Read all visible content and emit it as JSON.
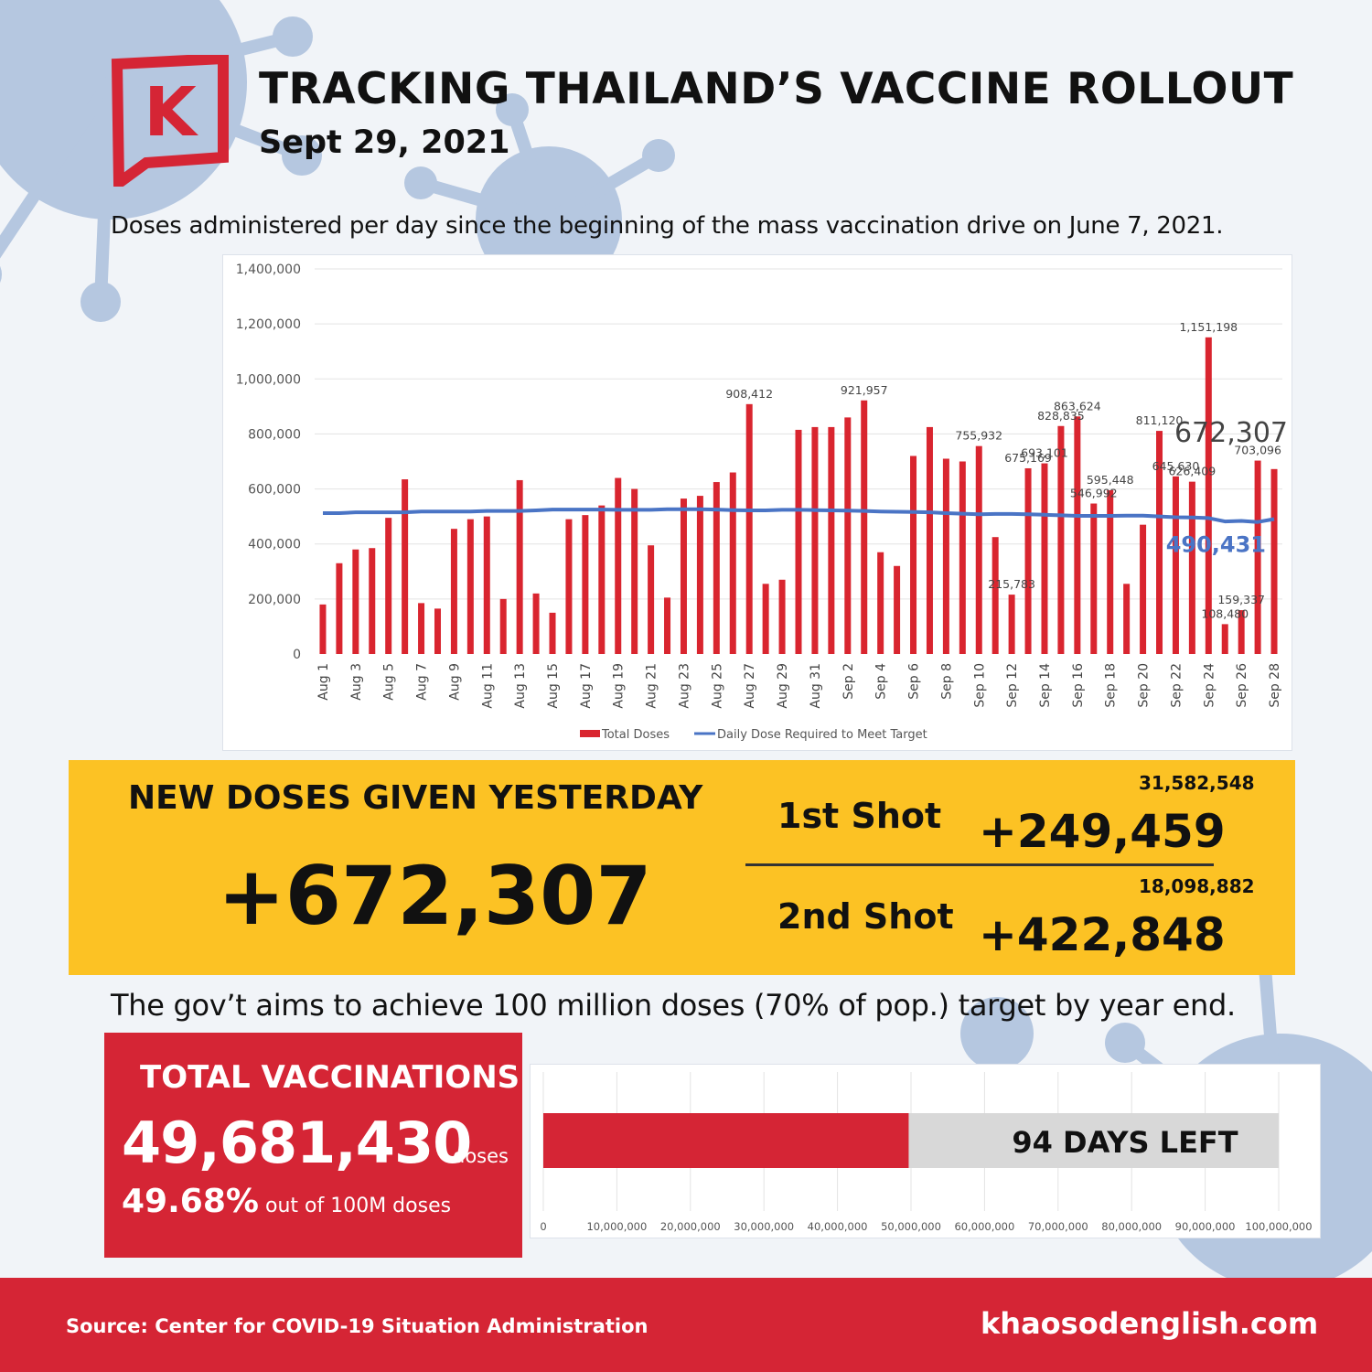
{
  "header": {
    "title": "TRACKING THAILAND’S VACCINE ROLLOUT",
    "date": "Sept 29, 2021",
    "logo_letter": "K"
  },
  "chart_subtitle": "Doses administered per day since the beginning of the mass vaccination drive on June 7, 2021.",
  "colors": {
    "red": "#d52535",
    "bar": "#d9252f",
    "line": "#4a74c5",
    "yellow": "#fcc224",
    "virus": "#b5c7e0"
  },
  "chart_data": {
    "type": "bar",
    "x": [
      "Aug 1",
      "Aug 2",
      "Aug 3",
      "Aug 4",
      "Aug 5",
      "Aug 6",
      "Aug 7",
      "Aug 8",
      "Aug 9",
      "Aug 10",
      "Aug 11",
      "Aug 12",
      "Aug 13",
      "Aug 14",
      "Aug 15",
      "Aug 16",
      "Aug 17",
      "Aug 18",
      "Aug 19",
      "Aug 20",
      "Aug 21",
      "Aug 22",
      "Aug 23",
      "Aug 24",
      "Aug 25",
      "Aug 26",
      "Aug 27",
      "Aug 28",
      "Aug 29",
      "Aug 30",
      "Aug 31",
      "Sep 1",
      "Sep 2",
      "Sep 3",
      "Sep 4",
      "Sep 5",
      "Sep 6",
      "Sep 7",
      "Sep 8",
      "Sep 9",
      "Sep 10",
      "Sep 11",
      "Sep 12",
      "Sep 13",
      "Sep 14",
      "Sep 15",
      "Sep 16",
      "Sep 17",
      "Sep 18",
      "Sep 19",
      "Sep 20",
      "Sep 21",
      "Sep 22",
      "Sep 23",
      "Sep 24",
      "Sep 25",
      "Sep 26",
      "Sep 27",
      "Sep 28"
    ],
    "tick_labels": [
      "Aug 1",
      "Aug 3",
      "Aug 5",
      "Aug 7",
      "Aug 9",
      "Aug 11",
      "Aug 13",
      "Aug 15",
      "Aug 17",
      "Aug 19",
      "Aug 21",
      "Aug 23",
      "Aug 25",
      "Aug 27",
      "Aug 29",
      "Aug 31",
      "Sep 2",
      "Sep 4",
      "Sep 6",
      "Sep 8",
      "Sep 10",
      "Sep 12",
      "Sep 14",
      "Sep 16",
      "Sep 18",
      "Sep 20",
      "Sep 22",
      "Sep 24",
      "Sep 26",
      "Sep 28"
    ],
    "series": [
      {
        "name": "Total Doses",
        "type": "bar",
        "values": [
          180000,
          330000,
          380000,
          385000,
          495000,
          635000,
          185000,
          165000,
          455000,
          490000,
          500000,
          200000,
          632000,
          220000,
          150000,
          490000,
          505000,
          540000,
          640000,
          600000,
          395000,
          205000,
          565000,
          575000,
          625000,
          660000,
          908412,
          255000,
          270000,
          815000,
          825000,
          825000,
          860000,
          921957,
          370000,
          320000,
          720000,
          825000,
          710000,
          700000,
          755932,
          425000,
          215783,
          675169,
          693101,
          828835,
          863624,
          546992,
          595448,
          255000,
          470000,
          811120,
          645630,
          626409,
          1151198,
          108480,
          159337,
          703096,
          672307
        ]
      },
      {
        "name": "Daily Dose Required to Meet Target",
        "type": "line",
        "values": [
          512000,
          512000,
          515000,
          515000,
          515000,
          515000,
          518000,
          518000,
          518000,
          518000,
          520000,
          520000,
          520000,
          522000,
          525000,
          525000,
          525000,
          525000,
          524000,
          524000,
          524000,
          526000,
          526000,
          526000,
          525000,
          523000,
          522000,
          522000,
          524000,
          524000,
          523000,
          522000,
          521000,
          520000,
          518000,
          517000,
          516000,
          515000,
          512000,
          510000,
          508000,
          509000,
          509000,
          508000,
          506000,
          504000,
          502000,
          502000,
          502000,
          503000,
          503000,
          500000,
          497000,
          496000,
          494000,
          482000,
          484000,
          480000,
          490431
        ]
      }
    ],
    "data_labels": [
      {
        "index": 26,
        "text": "908,412"
      },
      {
        "index": 33,
        "text": "921,957"
      },
      {
        "index": 40,
        "text": "755,932"
      },
      {
        "index": 42,
        "text": "215,783"
      },
      {
        "index": 43,
        "text": "675,169"
      },
      {
        "index": 44,
        "text": "693,101"
      },
      {
        "index": 45,
        "text": "828,835"
      },
      {
        "index": 46,
        "text": "863,624"
      },
      {
        "index": 47,
        "text": "546,992"
      },
      {
        "index": 48,
        "text": "595,448"
      },
      {
        "index": 51,
        "text": "811,120"
      },
      {
        "index": 52,
        "text": "645,630"
      },
      {
        "index": 53,
        "text": "626,409"
      },
      {
        "index": 54,
        "text": "1,151,198"
      },
      {
        "index": 55,
        "text": "108,480"
      },
      {
        "index": 56,
        "text": "159,337"
      },
      {
        "index": 57,
        "text": "703,096"
      }
    ],
    "highlight_bar_label": "672,307",
    "highlight_line_label": "490,431",
    "yticks": [
      "0",
      "200,000",
      "400,000",
      "600,000",
      "800,000",
      "1,000,000",
      "1,200,000",
      "1,400,000"
    ],
    "ylim": [
      0,
      1400000
    ],
    "grid": true,
    "legend_position": "bottom"
  },
  "yesterday": {
    "label": "NEW DOSES GIVEN YESTERDAY",
    "total": "+672,307",
    "first_label": "1st Shot",
    "first_cumulative": "31,582,548",
    "first_new": "+249,459",
    "second_label": "2nd Shot",
    "second_cumulative": "18,098,882",
    "second_new": "+422,848"
  },
  "aim_text": "The gov’t aims to achieve 100 million doses (70% of pop.) target by year end.",
  "totals": {
    "label": "TOTAL VACCINATIONS",
    "value": "49,681,430",
    "unit": "doses",
    "pct": "49.68%",
    "pct_text": "out of 100M doses"
  },
  "progress": {
    "value": 49681430,
    "max": 100000000,
    "days_left": "94 DAYS LEFT",
    "ticks": [
      "0",
      "10,000,000",
      "20,000,000",
      "30,000,000",
      "40,000,000",
      "50,000,000",
      "60,000,000",
      "70,000,000",
      "80,000,000",
      "90,000,000",
      "100,000,000"
    ]
  },
  "footer": {
    "source": "Source: Center for COVID-19 Situation Administration",
    "site": "khaosodenglish.com"
  }
}
